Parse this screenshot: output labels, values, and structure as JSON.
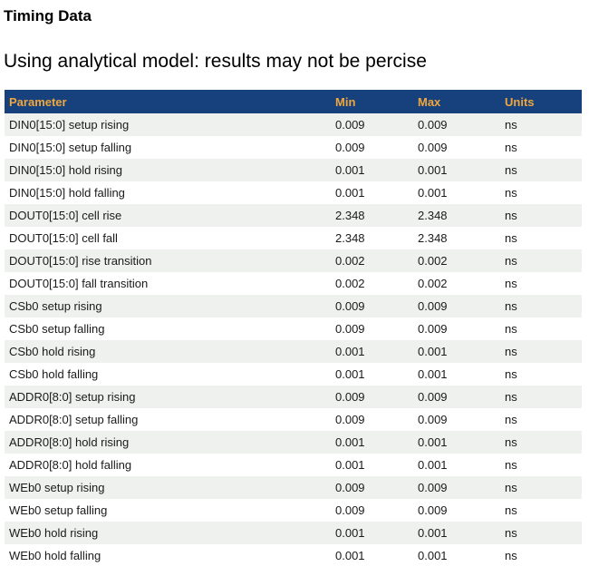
{
  "page": {
    "title": "Timing Data",
    "subtitle": "Using analytical model: results may not be percise"
  },
  "table": {
    "columns": [
      "Parameter",
      "Min",
      "Max",
      "Units"
    ],
    "rows": [
      [
        "DIN0[15:0] setup rising",
        "0.009",
        "0.009",
        "ns"
      ],
      [
        "DIN0[15:0] setup falling",
        "0.009",
        "0.009",
        "ns"
      ],
      [
        "DIN0[15:0] hold rising",
        "0.001",
        "0.001",
        "ns"
      ],
      [
        "DIN0[15:0] hold falling",
        "0.001",
        "0.001",
        "ns"
      ],
      [
        "DOUT0[15:0] cell rise",
        "2.348",
        "2.348",
        "ns"
      ],
      [
        "DOUT0[15:0] cell fall",
        "2.348",
        "2.348",
        "ns"
      ],
      [
        "DOUT0[15:0] rise transition",
        "0.002",
        "0.002",
        "ns"
      ],
      [
        "DOUT0[15:0] fall transition",
        "0.002",
        "0.002",
        "ns"
      ],
      [
        "CSb0 setup rising",
        "0.009",
        "0.009",
        "ns"
      ],
      [
        "CSb0 setup falling",
        "0.009",
        "0.009",
        "ns"
      ],
      [
        "CSb0 hold rising",
        "0.001",
        "0.001",
        "ns"
      ],
      [
        "CSb0 hold falling",
        "0.001",
        "0.001",
        "ns"
      ],
      [
        "ADDR0[8:0] setup rising",
        "0.009",
        "0.009",
        "ns"
      ],
      [
        "ADDR0[8:0] setup falling",
        "0.009",
        "0.009",
        "ns"
      ],
      [
        "ADDR0[8:0] hold rising",
        "0.001",
        "0.001",
        "ns"
      ],
      [
        "ADDR0[8:0] hold falling",
        "0.001",
        "0.001",
        "ns"
      ],
      [
        "WEb0 setup rising",
        "0.009",
        "0.009",
        "ns"
      ],
      [
        "WEb0 setup falling",
        "0.009",
        "0.009",
        "ns"
      ],
      [
        "WEb0 hold rising",
        "0.001",
        "0.001",
        "ns"
      ],
      [
        "WEb0 hold falling",
        "0.001",
        "0.001",
        "ns"
      ]
    ],
    "colors": {
      "header_bg": "#17417d",
      "header_text": "#efa63e",
      "stripe_bg": "#eff1ef",
      "row_text": "#1a1a1a"
    }
  }
}
